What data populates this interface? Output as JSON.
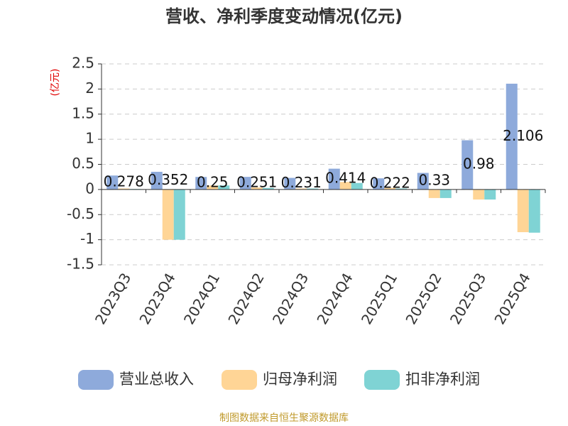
{
  "chart_data": {
    "type": "bar",
    "title": "营收、净利季度变动情况(亿元)",
    "y_label": "(亿元)",
    "categories": [
      "2023Q3",
      "2023Q4",
      "2024Q1",
      "2024Q2",
      "2024Q3",
      "2024Q4",
      "2025Q1",
      "2025Q2",
      "2025Q3",
      "2025Q4"
    ],
    "series": [
      {
        "name": "营业总收入",
        "color": "#8eaadb",
        "values": [
          0.278,
          0.352,
          0.25,
          0.251,
          0.231,
          0.414,
          0.222,
          0.33,
          0.98,
          2.106
        ],
        "data_labels": true
      },
      {
        "name": "归母净利润",
        "color": "#ffd596",
        "values": [
          0.02,
          -1.0,
          0.08,
          0.04,
          0.02,
          0.15,
          0.03,
          -0.17,
          -0.2,
          -0.85
        ],
        "data_labels": false
      },
      {
        "name": "扣非净利润",
        "color": "#7fd3d4",
        "values": [
          0.01,
          -1.0,
          0.08,
          0.03,
          0.02,
          0.13,
          0.02,
          -0.17,
          -0.2,
          -0.86
        ],
        "data_labels": false
      }
    ],
    "ylim": [
      -1.5,
      2.5
    ],
    "yticks": [
      -1.5,
      -1,
      -0.5,
      0,
      0.5,
      1,
      1.5,
      2,
      2.5
    ],
    "grid": true,
    "legend": "bottom",
    "source": "制图数据来自恒生聚源数据库"
  }
}
